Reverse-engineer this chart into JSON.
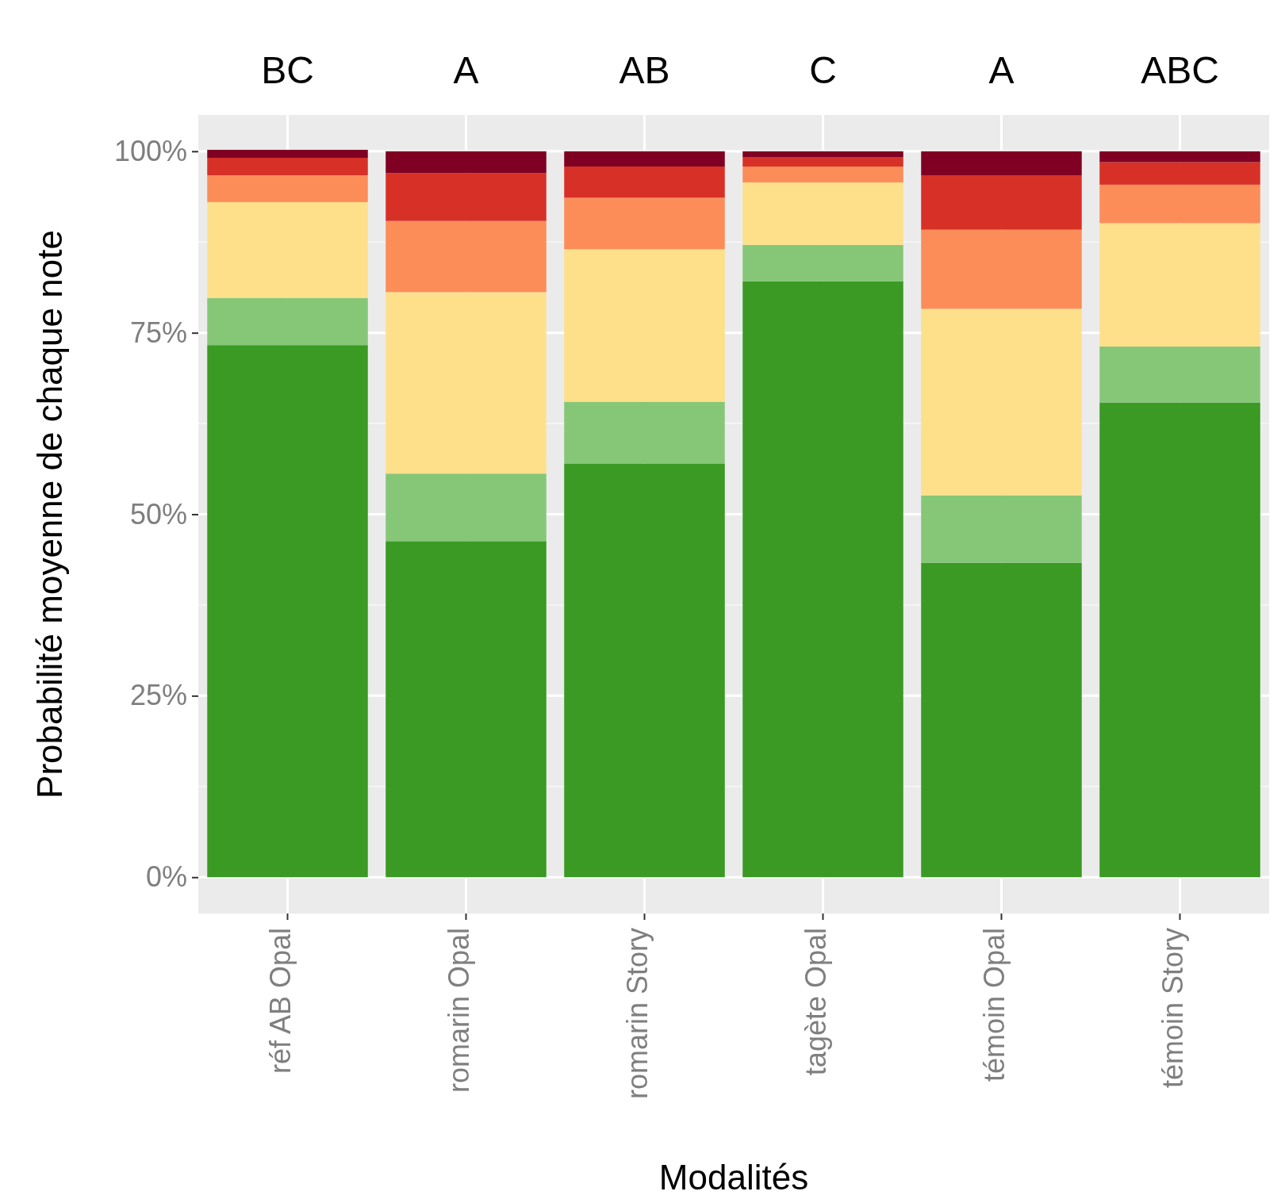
{
  "chart_data": {
    "type": "bar",
    "stacked": true,
    "xlabel": "Modalités",
    "ylabel": "Probabilité moyenne de chaque note",
    "categories": [
      "réf AB Opal",
      "romarin Opal",
      "romarin Story",
      "tagète Opal",
      "témoin Opal",
      "témoin Story"
    ],
    "series": [
      {
        "color": "#3a9a23",
        "values": [
          73.3,
          46.3,
          57.0,
          82.1,
          43.3,
          65.4
        ]
      },
      {
        "color": "#85c777",
        "values": [
          6.5,
          9.3,
          8.5,
          5.0,
          9.3,
          7.7
        ]
      },
      {
        "color": "#fee08b",
        "values": [
          13.2,
          25.0,
          21.0,
          8.6,
          25.7,
          17.0
        ]
      },
      {
        "color": "#fc8d59",
        "values": [
          3.7,
          9.8,
          7.1,
          2.2,
          10.9,
          5.3
        ]
      },
      {
        "color": "#d73027",
        "values": [
          2.4,
          6.6,
          4.3,
          1.3,
          7.5,
          3.1
        ]
      },
      {
        "color": "#7f0022",
        "values": [
          1.1,
          3.0,
          2.1,
          0.8,
          3.3,
          1.5
        ]
      }
    ],
    "ylim": [
      -5,
      105
    ],
    "yticks": [
      {
        "value": 0,
        "label": "0%"
      },
      {
        "value": 25,
        "label": "25%"
      },
      {
        "value": 50,
        "label": "50%"
      },
      {
        "value": 75,
        "label": "75%"
      },
      {
        "value": 100,
        "label": "100%"
      }
    ],
    "grid": true,
    "annotations": [
      "BC",
      "A",
      "AB",
      "C",
      "A",
      "ABC"
    ]
  }
}
